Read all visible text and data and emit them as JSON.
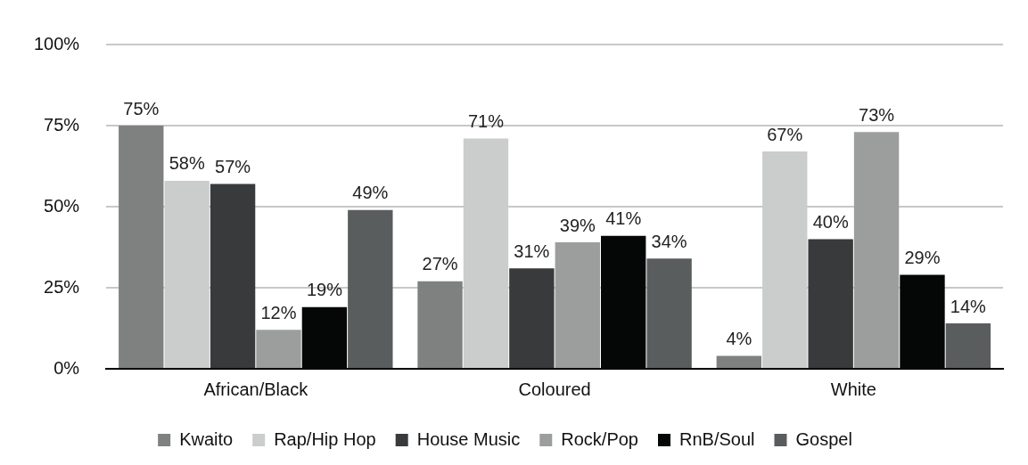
{
  "chart_data": {
    "type": "bar",
    "categories": [
      "African/Black",
      "Coloured",
      "White"
    ],
    "series": [
      {
        "name": "Kwaito",
        "color": "#7f8181",
        "values": [
          75,
          27,
          4
        ],
        "value_labels": [
          "75%",
          "27%",
          "4%"
        ]
      },
      {
        "name": "Rap/Hip Hop",
        "color": "#cbcccc",
        "values": [
          58,
          71,
          67
        ],
        "value_labels": [
          "58%",
          "71%",
          "67%"
        ]
      },
      {
        "name": "House Music",
        "color": "#383a3b",
        "values": [
          57,
          31,
          40
        ],
        "value_labels": [
          "57%",
          "31%",
          "40%"
        ]
      },
      {
        "name": "Rock/Pop",
        "color": "#9c9d9d",
        "values": [
          12,
          39,
          73
        ],
        "value_labels": [
          "12%",
          "39%",
          "73%"
        ]
      },
      {
        "name": "RnB/Soul",
        "color": "#050707",
        "values": [
          19,
          41,
          29
        ],
        "value_labels": [
          "19%",
          "41%",
          "29%"
        ]
      },
      {
        "name": "Gospel",
        "color": "#5a5d5e",
        "values": [
          49,
          34,
          14
        ],
        "value_labels": [
          "49%",
          "34%",
          "14%"
        ]
      }
    ],
    "ylim": [
      0,
      100
    ],
    "yticks": [
      {
        "value": 0,
        "label": "0%"
      },
      {
        "value": 25,
        "label": "25%"
      },
      {
        "value": 50,
        "label": "50%"
      },
      {
        "value": 75,
        "label": "75%"
      },
      {
        "value": 100,
        "label": "100%"
      }
    ],
    "grid": "y",
    "legend": "bottom"
  }
}
